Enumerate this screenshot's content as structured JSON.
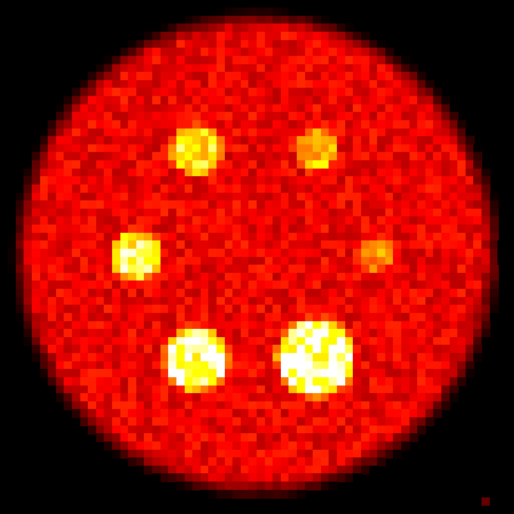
{
  "image": {
    "kind": "nuclear-medicine-phantom-scan",
    "colormap": "hot",
    "background_color": "#000000",
    "phantom_fill_color": "#a00000",
    "matrix_size": 64,
    "noise_level": 0.22,
    "phantom_intensity": 0.42
  },
  "hot_spots": [
    {
      "label": "hot-spot-top-left",
      "intensity": 0.86
    },
    {
      "label": "hot-spot-top-right",
      "intensity": 0.78
    },
    {
      "label": "hot-spot-left",
      "intensity": 0.92
    },
    {
      "label": "hot-spot-right",
      "intensity": 0.7
    },
    {
      "label": "hot-spot-bottom-left",
      "intensity": 0.98
    },
    {
      "label": "hot-spot-bottom-right",
      "intensity": 1.0
    }
  ]
}
